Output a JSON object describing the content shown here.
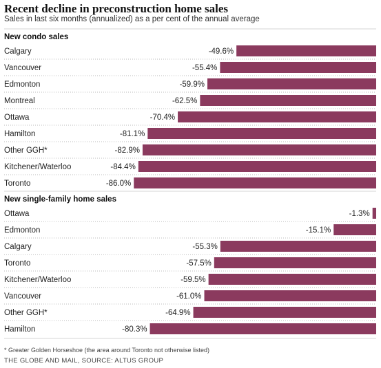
{
  "chart_data": {
    "type": "bar",
    "orientation": "horizontal",
    "title": "Recent decline in preconstruction home sales",
    "subtitle": "Sales in last six months (annualized) as a per cent of the annual average",
    "bar_color": "#8b3a5e",
    "xlim": [
      -100,
      0
    ],
    "grid": false,
    "sections": [
      {
        "name": "New condo sales",
        "categories": [
          "Calgary",
          "Vancouver",
          "Edmonton",
          "Montreal",
          "Ottawa",
          "Hamilton",
          "Other GGH*",
          "Kitchener/Waterloo",
          "Toronto"
        ],
        "values": [
          -49.6,
          -55.4,
          -59.9,
          -62.5,
          -70.4,
          -81.1,
          -82.9,
          -84.4,
          -86.0
        ],
        "labels": [
          "-49.6%",
          "-55.4%",
          "-59.9%",
          "-62.5%",
          "-70.4%",
          "-81.1%",
          "-82.9%",
          "-84.4%",
          "-86.0%"
        ]
      },
      {
        "name": "New single-family home sales",
        "categories": [
          "Ottawa",
          "Edmonton",
          "Calgary",
          "Toronto",
          "Kitchener/Waterloo",
          "Vancouver",
          "Other GGH*",
          "Hamilton"
        ],
        "values": [
          -1.3,
          -15.1,
          -55.3,
          -57.5,
          -59.5,
          -61.0,
          -64.9,
          -80.3
        ],
        "labels": [
          "-1.3%",
          "-15.1%",
          "-55.3%",
          "-57.5%",
          "-59.5%",
          "-61.0%",
          "-64.9%",
          "-80.3%"
        ]
      }
    ],
    "footnote": "* Greater Golden Horseshoe (the area around Toronto not otherwise listed)",
    "source": "THE GLOBE AND MAIL, SOURCE: ALTUS GROUP"
  }
}
